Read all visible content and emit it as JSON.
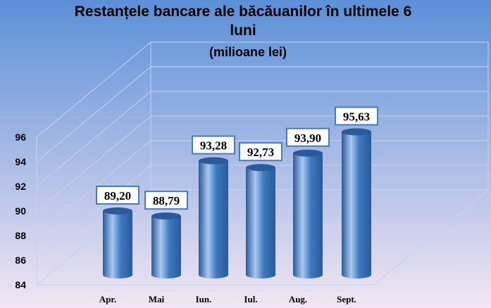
{
  "chart_data": {
    "type": "bar",
    "title_line1": "Restanțele bancare ale băcăuanilor în ultimele 6",
    "title_line2": "luni",
    "subtitle": "(milioane lei)",
    "categories": [
      "Apr.",
      "Mai",
      "Iun.",
      "Iul.",
      "Aug.",
      "Sept."
    ],
    "values": [
      89.2,
      88.79,
      93.28,
      92.73,
      93.9,
      95.63
    ],
    "value_labels": [
      "89,20",
      "88,79",
      "93,28",
      "92,73",
      "93,90",
      "95,63"
    ],
    "y_ticks": [
      "84",
      "86",
      "88",
      "90",
      "92",
      "94",
      "96"
    ],
    "ylim": [
      84,
      96
    ],
    "grid": true,
    "legend": "none",
    "style": "3d-cylinder",
    "colors": {
      "background_top": "#5b8fd8",
      "background_bottom": "#f2e6f3",
      "bar": "#3f78c0",
      "bar_highlight": "#a9c8f0",
      "bar_top": "#2a5a9a",
      "label_border": "#4a7ab8",
      "gridline": "#c6d3f0"
    }
  }
}
